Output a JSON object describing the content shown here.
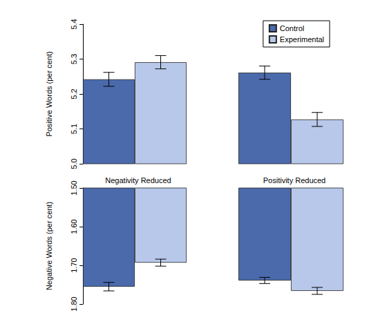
{
  "chart_data": [
    {
      "type": "bar",
      "ylabel": "Positive Words (per cent)",
      "ylim": [
        5.0,
        5.4
      ],
      "yticks": [
        {
          "value": 5.0,
          "label": "5.0"
        },
        5.1,
        5.2,
        5.3,
        5.4
      ],
      "tick_labels": "y",
      "grid": false,
      "series": [
        {
          "name": "Control",
          "color": "#4a6aab",
          "values": [
            5.242
          ],
          "errors": [
            0.02
          ]
        },
        {
          "name": "Experimental",
          "color": "#b8c8ea",
          "values": [
            5.291
          ],
          "errors": [
            0.019
          ]
        }
      ]
    },
    {
      "type": "bar",
      "ylim": [
        5.0,
        5.4
      ],
      "yticks": [
        {
          "value": 5.0,
          "label": "5.0"
        },
        5.1,
        5.2,
        5.3,
        5.4
      ],
      "tick_labels": false,
      "grid": false,
      "legend": "upper right",
      "series": [
        {
          "name": "Control",
          "color": "#4a6aab",
          "values": [
            5.261
          ],
          "errors": [
            0.019
          ]
        },
        {
          "name": "Experimental",
          "color": "#b8c8ea",
          "values": [
            5.127
          ],
          "errors": [
            0.02
          ]
        }
      ]
    },
    {
      "type": "bar",
      "title": "Negativity Reduced",
      "ylabel": "Negative Words (per cent)",
      "ylim": [
        1.8,
        1.5
      ],
      "yticks": [
        {
          "value": 1.5,
          "label": "1.50"
        },
        {
          "value": 1.6,
          "label": "1.60"
        },
        {
          "value": 1.7,
          "label": "1.70"
        },
        {
          "value": 1.8,
          "label": "1.80"
        }
      ],
      "tick_labels": "y",
      "grid": false,
      "series": [
        {
          "name": "Control",
          "color": "#4a6aab",
          "values": [
            1.755
          ],
          "errors": [
            0.011
          ]
        },
        {
          "name": "Experimental",
          "color": "#b8c8ea",
          "values": [
            1.693
          ],
          "errors": [
            0.009
          ]
        }
      ]
    },
    {
      "type": "bar",
      "title": "Positivity Reduced",
      "ylim": [
        1.8,
        1.5
      ],
      "yticks": [
        {
          "value": 1.5,
          "label": "1.50"
        },
        {
          "value": 1.6,
          "label": "1.60"
        },
        {
          "value": 1.7,
          "label": "1.70"
        },
        {
          "value": 1.8,
          "label": "1.80"
        }
      ],
      "tick_labels": false,
      "grid": false,
      "series": [
        {
          "name": "Control",
          "color": "#4a6aab",
          "values": [
            1.739
          ],
          "errors": [
            0.008
          ]
        },
        {
          "name": "Experimental",
          "color": "#b8c8ea",
          "values": [
            1.766
          ],
          "errors": [
            0.009
          ]
        }
      ]
    }
  ]
}
